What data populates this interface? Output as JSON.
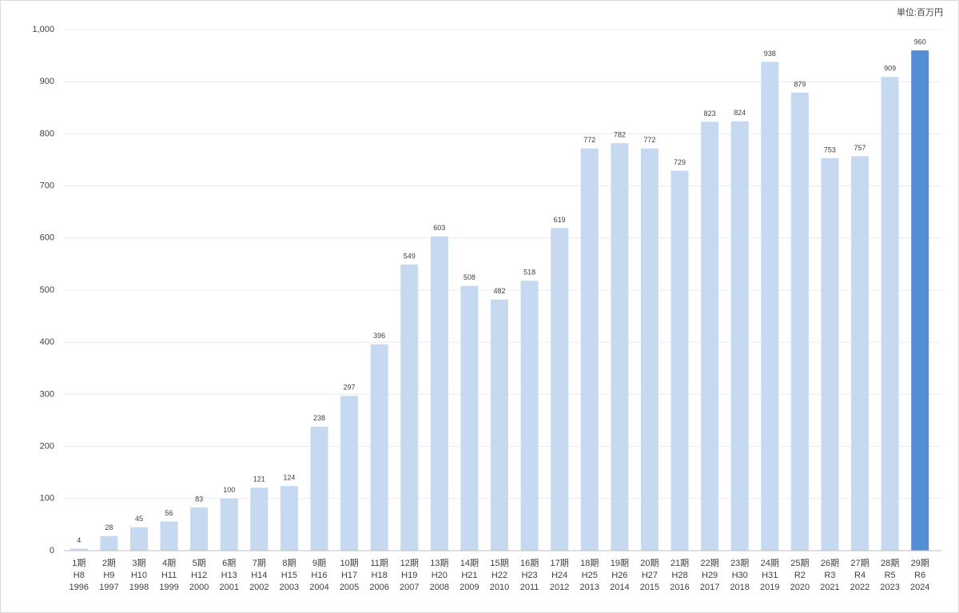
{
  "chart_data": {
    "type": "bar",
    "unit": "単位:百万円",
    "categories": [
      [
        "1期",
        "H8",
        "1996"
      ],
      [
        "2期",
        "H9",
        "1997"
      ],
      [
        "3期",
        "H10",
        "1998"
      ],
      [
        "4期",
        "H11",
        "1999"
      ],
      [
        "5期",
        "H12",
        "2000"
      ],
      [
        "6期",
        "H13",
        "2001"
      ],
      [
        "7期",
        "H14",
        "2002"
      ],
      [
        "8期",
        "H15",
        "2003"
      ],
      [
        "9期",
        "H16",
        "2004"
      ],
      [
        "10期",
        "H17",
        "2005"
      ],
      [
        "11期",
        "H18",
        "2006"
      ],
      [
        "12期",
        "H19",
        "2007"
      ],
      [
        "13期",
        "H20",
        "2008"
      ],
      [
        "14期",
        "H21",
        "2009"
      ],
      [
        "15期",
        "H22",
        "2010"
      ],
      [
        "16期",
        "H23",
        "2011"
      ],
      [
        "17期",
        "H24",
        "2012"
      ],
      [
        "18期",
        "H25",
        "2013"
      ],
      [
        "19期",
        "H26",
        "2014"
      ],
      [
        "20期",
        "H27",
        "2015"
      ],
      [
        "21期",
        "H28",
        "2016"
      ],
      [
        "22期",
        "H29",
        "2017"
      ],
      [
        "23期",
        "H30",
        "2018"
      ],
      [
        "24期",
        "H31",
        "2019"
      ],
      [
        "25期",
        "R2",
        "2020"
      ],
      [
        "26期",
        "R3",
        "2021"
      ],
      [
        "27期",
        "R4",
        "2022"
      ],
      [
        "28期",
        "R5",
        "2023"
      ],
      [
        "29期",
        "R6",
        "2024"
      ]
    ],
    "values": [
      4,
      28,
      45,
      56,
      83,
      100,
      121,
      124,
      238,
      297,
      396,
      549,
      603,
      508,
      482,
      518,
      619,
      772,
      782,
      772,
      729,
      823,
      824,
      938,
      879,
      753,
      757,
      909,
      960
    ],
    "colors": [
      "#c6d9f1",
      "#c6d9f1",
      "#c6d9f1",
      "#c6d9f1",
      "#c6d9f1",
      "#c6d9f1",
      "#c6d9f1",
      "#c6d9f1",
      "#c6d9f1",
      "#c6d9f1",
      "#c6d9f1",
      "#c6d9f1",
      "#c6d9f1",
      "#c6d9f1",
      "#c6d9f1",
      "#c6d9f1",
      "#c6d9f1",
      "#c6d9f1",
      "#c6d9f1",
      "#c6d9f1",
      "#c6d9f1",
      "#c6d9f1",
      "#c6d9f1",
      "#c6d9f1",
      "#c6d9f1",
      "#c6d9f1",
      "#c6d9f1",
      "#c6d9f1",
      "#558ed5"
    ],
    "ylim": [
      0,
      1000
    ],
    "yticks": [
      0,
      100,
      200,
      300,
      400,
      500,
      600,
      700,
      800,
      900,
      {
        "value": 1000,
        "label": "1,000"
      }
    ],
    "grid": true
  }
}
